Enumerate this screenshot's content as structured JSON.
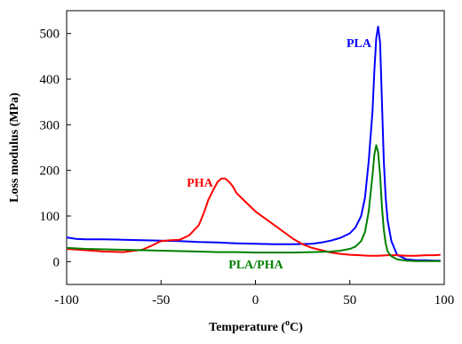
{
  "chart_data": {
    "type": "line",
    "xlabel": "Temperature (",
    "xlabel_sup": "o",
    "xlabel_tail": "C)",
    "ylabel": "Loss modulus (MPa)",
    "xlim": [
      -100,
      100
    ],
    "ylim": [
      -50,
      550
    ],
    "x_ticks": [
      -100,
      -50,
      0,
      50,
      100
    ],
    "y_ticks": [
      0,
      100,
      200,
      300,
      400,
      500
    ],
    "grid": false,
    "legend": "inline labels",
    "series": [
      {
        "name": "PLA",
        "color": "#0000ff",
        "points": [
          [
            -100,
            53
          ],
          [
            -95,
            50
          ],
          [
            -90,
            49
          ],
          [
            -80,
            49
          ],
          [
            -70,
            48
          ],
          [
            -60,
            47
          ],
          [
            -50,
            46
          ],
          [
            -40,
            45
          ],
          [
            -30,
            43
          ],
          [
            -20,
            42
          ],
          [
            -10,
            40
          ],
          [
            0,
            39
          ],
          [
            10,
            38
          ],
          [
            20,
            38
          ],
          [
            30,
            39
          ],
          [
            35,
            42
          ],
          [
            40,
            46
          ],
          [
            45,
            52
          ],
          [
            50,
            62
          ],
          [
            53,
            75
          ],
          [
            56,
            100
          ],
          [
            58,
            140
          ],
          [
            60,
            220
          ],
          [
            62,
            330
          ],
          [
            63,
            420
          ],
          [
            64,
            490
          ],
          [
            65,
            515
          ],
          [
            66,
            480
          ],
          [
            67,
            350
          ],
          [
            68,
            220
          ],
          [
            69,
            140
          ],
          [
            70,
            90
          ],
          [
            72,
            45
          ],
          [
            75,
            15
          ],
          [
            80,
            5
          ],
          [
            85,
            3
          ],
          [
            90,
            3
          ],
          [
            95,
            2
          ],
          [
            98,
            2
          ]
        ]
      },
      {
        "name": "PHA",
        "color": "#ff0000",
        "points": [
          [
            -100,
            28
          ],
          [
            -90,
            25
          ],
          [
            -80,
            22
          ],
          [
            -70,
            21
          ],
          [
            -60,
            26
          ],
          [
            -55,
            35
          ],
          [
            -50,
            45
          ],
          [
            -45,
            47
          ],
          [
            -40,
            48
          ],
          [
            -35,
            58
          ],
          [
            -30,
            80
          ],
          [
            -27,
            110
          ],
          [
            -25,
            135
          ],
          [
            -22,
            160
          ],
          [
            -20,
            175
          ],
          [
            -18,
            182
          ],
          [
            -16,
            182
          ],
          [
            -14,
            175
          ],
          [
            -12,
            165
          ],
          [
            -10,
            150
          ],
          [
            -5,
            130
          ],
          [
            0,
            110
          ],
          [
            5,
            95
          ],
          [
            10,
            80
          ],
          [
            15,
            65
          ],
          [
            20,
            50
          ],
          [
            25,
            38
          ],
          [
            30,
            30
          ],
          [
            35,
            25
          ],
          [
            40,
            20
          ],
          [
            45,
            17
          ],
          [
            50,
            15
          ],
          [
            55,
            14
          ],
          [
            60,
            13
          ],
          [
            65,
            13
          ],
          [
            70,
            14
          ],
          [
            75,
            14
          ],
          [
            80,
            13
          ],
          [
            85,
            13
          ],
          [
            90,
            14
          ],
          [
            95,
            14
          ],
          [
            98,
            15
          ]
        ]
      },
      {
        "name": "PLA/PHA",
        "color": "#008000",
        "points": [
          [
            -100,
            30
          ],
          [
            -90,
            28
          ],
          [
            -80,
            27
          ],
          [
            -70,
            26
          ],
          [
            -60,
            25
          ],
          [
            -50,
            24
          ],
          [
            -40,
            23
          ],
          [
            -30,
            22
          ],
          [
            -20,
            21
          ],
          [
            -10,
            21
          ],
          [
            0,
            20
          ],
          [
            10,
            20
          ],
          [
            20,
            20
          ],
          [
            30,
            21
          ],
          [
            40,
            22
          ],
          [
            45,
            24
          ],
          [
            50,
            28
          ],
          [
            53,
            33
          ],
          [
            56,
            45
          ],
          [
            58,
            65
          ],
          [
            60,
            110
          ],
          [
            62,
            190
          ],
          [
            63,
            235
          ],
          [
            64,
            255
          ],
          [
            65,
            240
          ],
          [
            66,
            190
          ],
          [
            67,
            120
          ],
          [
            68,
            70
          ],
          [
            69,
            40
          ],
          [
            70,
            22
          ],
          [
            72,
            12
          ],
          [
            75,
            5
          ],
          [
            80,
            2
          ],
          [
            85,
            1
          ],
          [
            90,
            1
          ],
          [
            95,
            1
          ],
          [
            98,
            1
          ]
        ]
      }
    ]
  }
}
